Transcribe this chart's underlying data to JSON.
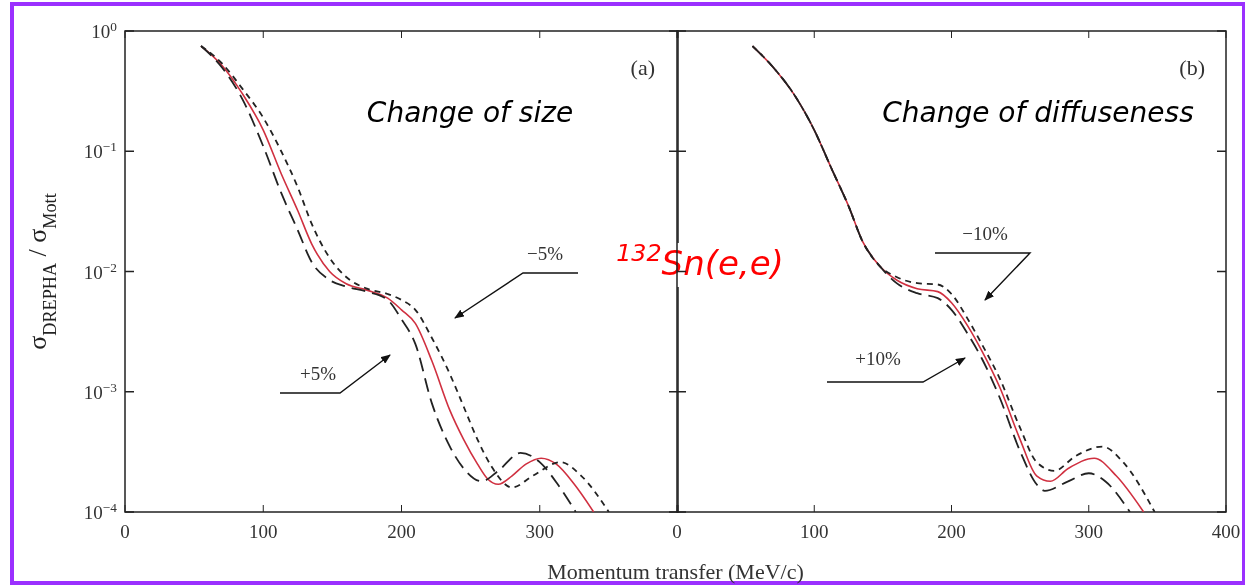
{
  "chart_data": [
    {
      "type": "line",
      "xlabel": "Momentum transfer (MeV/c)",
      "ylabel": "σ$_{DREPHA}$ / σ$_{Mott}$",
      "log": "y",
      "xlim": [
        0,
        400
      ],
      "ylim": [
        0.0001,
        1
      ],
      "xticks": [
        0,
        100,
        200,
        300,
        {
          "value": 400,
          "label": null
        }
      ],
      "yticks": [
        {
          "value": 0.0001,
          "label": "10$^{−4}$"
        },
        {
          "value": 0.001,
          "label": "10$^{−3}$"
        },
        {
          "value": 0.01,
          "label": "10$^{−2}$"
        },
        {
          "value": 0.1,
          "label": "10$^{−1}$"
        },
        {
          "value": 1,
          "label": "10$^{0}$"
        }
      ],
      "grid": false,
      "annotations": [
        "(a)",
        "Change of size",
        "$^{132}$Sn(e,e)",
        "−5%",
        "+5%"
      ],
      "series": [
        {
          "color": "#d03040",
          "line_style": "solid",
          "x": [
            55,
            70,
            85,
            100,
            113,
            125,
            135,
            148,
            160,
            175,
            190,
            200,
            210,
            222,
            235,
            245,
            255,
            262,
            270,
            280,
            290,
            301,
            312,
            325,
            339
          ],
          "values": [
            0.75,
            0.52,
            0.3,
            0.15,
            0.065,
            0.032,
            0.017,
            0.01,
            0.0079,
            0.007,
            0.006,
            0.0048,
            0.0037,
            0.0018,
            0.0007,
            0.0004,
            0.00025,
            0.00019,
            0.00017,
            0.0002,
            0.00025,
            0.00028,
            0.00025,
            0.00017,
            0.0001
          ]
        },
        {
          "color": "#222222",
          "line_style": "dashed",
          "x": [
            55,
            70,
            85,
            100,
            113,
            125,
            135,
            148,
            160,
            175,
            190,
            200,
            210,
            222,
            235,
            245,
            258,
            270,
            286,
            300,
            313,
            326
          ],
          "values": [
            0.75,
            0.5,
            0.27,
            0.11,
            0.045,
            0.022,
            0.012,
            0.0085,
            0.0075,
            0.0068,
            0.0058,
            0.004,
            0.0025,
            0.0008,
            0.00035,
            0.00023,
            0.00018,
            0.00022,
            0.00031,
            0.00026,
            0.00017,
            0.0001
          ]
        },
        {
          "color": "#222222",
          "line_style": "dashed",
          "x": [
            55,
            70,
            85,
            100,
            113,
            125,
            135,
            148,
            160,
            175,
            190,
            200,
            210,
            222,
            235,
            245,
            255,
            265,
            280,
            295,
            315,
            330,
            350
          ],
          "values": [
            0.75,
            0.54,
            0.33,
            0.19,
            0.1,
            0.05,
            0.025,
            0.013,
            0.009,
            0.0072,
            0.0065,
            0.0058,
            0.0048,
            0.0028,
            0.0014,
            0.00075,
            0.0004,
            0.00024,
            0.00016,
            0.0002,
            0.00026,
            0.0002,
            0.0001
          ]
        }
      ]
    },
    {
      "type": "line",
      "log": "y",
      "xlim": [
        0,
        400
      ],
      "ylim": [
        0.0001,
        1
      ],
      "tick_labels": "x",
      "xticks": [
        0,
        100,
        200,
        300,
        400
      ],
      "yticks": [
        {
          "value": 0.0001,
          "label": null
        },
        {
          "value": 0.001,
          "label": null
        },
        {
          "value": 0.01,
          "label": null
        },
        {
          "value": 0.1,
          "label": null
        },
        {
          "value": 1,
          "label": null
        }
      ],
      "grid": false,
      "annotations": [
        "(b)",
        "Change of  diffuseness",
        "−10%",
        "+10%"
      ],
      "series": [
        {
          "color": "#d03040",
          "line_style": "solid",
          "x": [
            55,
            70,
            85,
            100,
            113,
            125,
            135,
            148,
            160,
            175,
            190,
            200,
            212,
            222,
            235,
            250,
            262,
            272,
            285,
            304,
            320,
            340
          ],
          "values": [
            0.75,
            0.5,
            0.3,
            0.15,
            0.07,
            0.035,
            0.018,
            0.011,
            0.0085,
            0.0072,
            0.0068,
            0.0055,
            0.0035,
            0.0022,
            0.0011,
            0.0004,
            0.0002,
            0.00018,
            0.00023,
            0.00028,
            0.0002,
            0.0001
          ]
        },
        {
          "color": "#222222",
          "line_style": "dashed",
          "x": [
            55,
            70,
            85,
            100,
            113,
            125,
            135,
            148,
            160,
            175,
            190,
            200,
            212,
            222,
            235,
            250,
            262,
            268,
            285,
            300,
            312,
            330
          ],
          "values": [
            0.75,
            0.5,
            0.3,
            0.15,
            0.07,
            0.035,
            0.018,
            0.011,
            0.008,
            0.0066,
            0.006,
            0.0048,
            0.003,
            0.0019,
            0.0009,
            0.00032,
            0.00017,
            0.00015,
            0.00018,
            0.00021,
            0.00018,
            0.0001
          ]
        },
        {
          "color": "#222222",
          "line_style": "dashed",
          "x": [
            55,
            70,
            85,
            100,
            113,
            125,
            135,
            148,
            160,
            175,
            190,
            200,
            212,
            222,
            235,
            250,
            262,
            275,
            290,
            310,
            325,
            348
          ],
          "values": [
            0.75,
            0.5,
            0.3,
            0.15,
            0.07,
            0.035,
            0.018,
            0.011,
            0.009,
            0.008,
            0.0078,
            0.0065,
            0.004,
            0.0025,
            0.0013,
            0.0005,
            0.00026,
            0.00022,
            0.00029,
            0.00035,
            0.00026,
            0.0001
          ]
        }
      ]
    }
  ]
}
